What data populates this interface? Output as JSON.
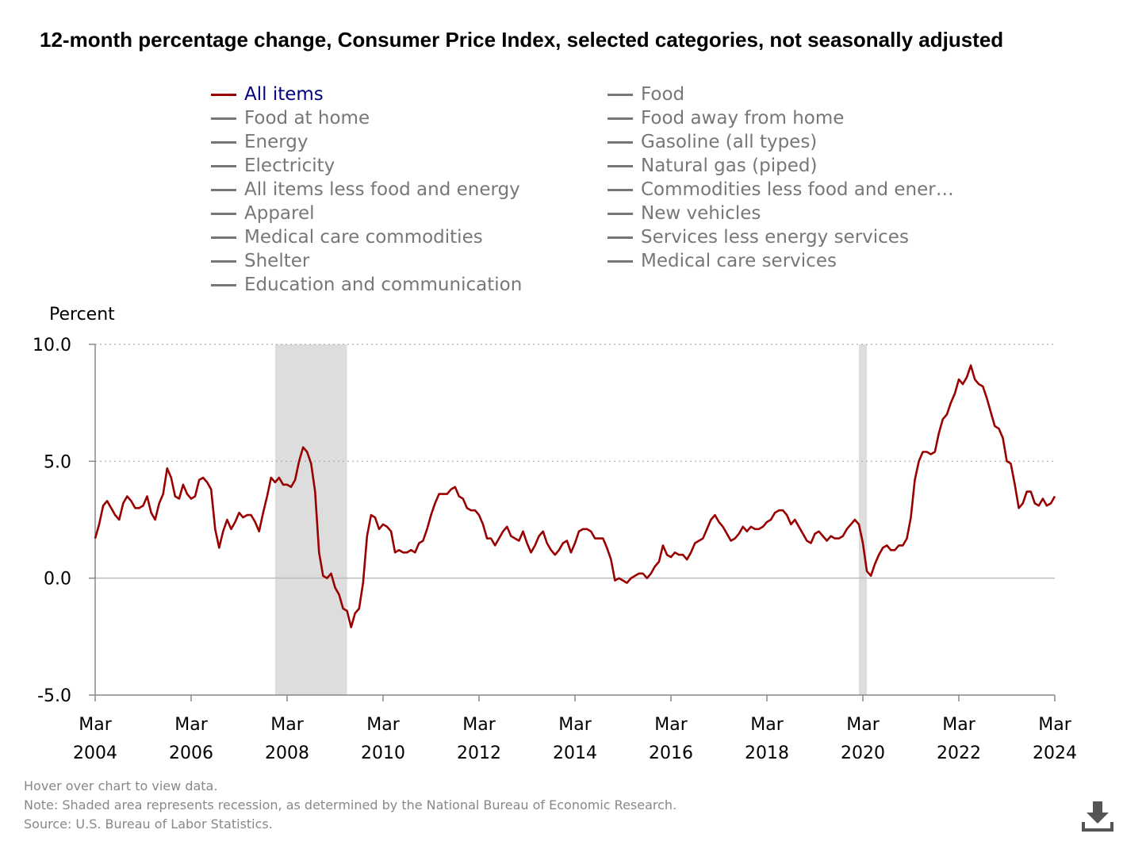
{
  "title": "12-month percentage change, Consumer Price Index, selected categories, not seasonally adjusted",
  "legend": {
    "col1": [
      "All items",
      "Food at home",
      "Energy",
      "Electricity",
      "All items less food and energy",
      "Apparel",
      "Medical care commodities",
      "Shelter",
      "Education and communication"
    ],
    "col2": [
      "Food",
      "Food away from home",
      "Gasoline (all types)",
      "Natural gas (piped)",
      "Commodities less food and ener…",
      "New vehicles",
      "Services less energy services",
      "Medical care services"
    ]
  },
  "colors": {
    "active": "#990000",
    "inactive": "#777777",
    "recession": "#dddddd",
    "active_label": "#000080"
  },
  "icons": {
    "download": "download-icon"
  },
  "footer": {
    "hover": "Hover over chart to view data.",
    "note": "Note: Shaded area represents recession, as determined by the National Bureau of Economic Research.",
    "source": "Source: U.S. Bureau of Labor Statistics."
  },
  "chart_data": {
    "type": "line",
    "title": "12-month percentage change, Consumer Price Index, selected categories, not seasonally adjusted",
    "ylabel": "Percent",
    "xlabel": "",
    "ylim": [
      -5,
      10
    ],
    "yticks": [
      "10.0",
      "5.0",
      "0.0",
      "-5.0"
    ],
    "ytick_values": [
      10,
      5,
      0,
      -5
    ],
    "xlim": [
      "2004-03",
      "2024-03"
    ],
    "xticks": [
      {
        "month": "Mar",
        "year": "2004",
        "date": "2004-03"
      },
      {
        "month": "Mar",
        "year": "2006",
        "date": "2006-03"
      },
      {
        "month": "Mar",
        "year": "2008",
        "date": "2008-03"
      },
      {
        "month": "Mar",
        "year": "2010",
        "date": "2010-03"
      },
      {
        "month": "Mar",
        "year": "2012",
        "date": "2012-03"
      },
      {
        "month": "Mar",
        "year": "2014",
        "date": "2014-03"
      },
      {
        "month": "Mar",
        "year": "2016",
        "date": "2016-03"
      },
      {
        "month": "Mar",
        "year": "2018",
        "date": "2018-03"
      },
      {
        "month": "Mar",
        "year": "2020",
        "date": "2020-03"
      },
      {
        "month": "Mar",
        "year": "2022",
        "date": "2022-03"
      },
      {
        "month": "Mar",
        "year": "2024",
        "date": "2024-03"
      }
    ],
    "recessions": [
      [
        "2007-12",
        "2009-06"
      ],
      [
        "2020-02",
        "2020-04"
      ]
    ],
    "grid": "dotted horizontal",
    "series": [
      {
        "name": "All items",
        "color": "#990000",
        "points": [
          [
            "2004-03",
            1.7
          ],
          [
            "2004-04",
            2.3
          ],
          [
            "2004-05",
            3.1
          ],
          [
            "2004-06",
            3.3
          ],
          [
            "2004-07",
            3.0
          ],
          [
            "2004-08",
            2.7
          ],
          [
            "2004-09",
            2.5
          ],
          [
            "2004-10",
            3.2
          ],
          [
            "2004-11",
            3.5
          ],
          [
            "2004-12",
            3.3
          ],
          [
            "2005-01",
            3.0
          ],
          [
            "2005-02",
            3.0
          ],
          [
            "2005-03",
            3.1
          ],
          [
            "2005-04",
            3.5
          ],
          [
            "2005-05",
            2.8
          ],
          [
            "2005-06",
            2.5
          ],
          [
            "2005-07",
            3.2
          ],
          [
            "2005-08",
            3.6
          ],
          [
            "2005-09",
            4.7
          ],
          [
            "2005-10",
            4.3
          ],
          [
            "2005-11",
            3.5
          ],
          [
            "2005-12",
            3.4
          ],
          [
            "2006-01",
            4.0
          ],
          [
            "2006-02",
            3.6
          ],
          [
            "2006-03",
            3.4
          ],
          [
            "2006-04",
            3.5
          ],
          [
            "2006-05",
            4.2
          ],
          [
            "2006-06",
            4.3
          ],
          [
            "2006-07",
            4.1
          ],
          [
            "2006-08",
            3.8
          ],
          [
            "2006-09",
            2.1
          ],
          [
            "2006-10",
            1.3
          ],
          [
            "2006-11",
            2.0
          ],
          [
            "2006-12",
            2.5
          ],
          [
            "2007-01",
            2.1
          ],
          [
            "2007-02",
            2.4
          ],
          [
            "2007-03",
            2.8
          ],
          [
            "2007-04",
            2.6
          ],
          [
            "2007-05",
            2.7
          ],
          [
            "2007-06",
            2.7
          ],
          [
            "2007-07",
            2.4
          ],
          [
            "2007-08",
            2.0
          ],
          [
            "2007-09",
            2.8
          ],
          [
            "2007-10",
            3.5
          ],
          [
            "2007-11",
            4.3
          ],
          [
            "2007-12",
            4.1
          ],
          [
            "2008-01",
            4.3
          ],
          [
            "2008-02",
            4.0
          ],
          [
            "2008-03",
            4.0
          ],
          [
            "2008-04",
            3.9
          ],
          [
            "2008-05",
            4.2
          ],
          [
            "2008-06",
            5.0
          ],
          [
            "2008-07",
            5.6
          ],
          [
            "2008-08",
            5.4
          ],
          [
            "2008-09",
            4.9
          ],
          [
            "2008-10",
            3.7
          ],
          [
            "2008-11",
            1.1
          ],
          [
            "2008-12",
            0.1
          ],
          [
            "2009-01",
            0.0
          ],
          [
            "2009-02",
            0.2
          ],
          [
            "2009-03",
            -0.4
          ],
          [
            "2009-04",
            -0.7
          ],
          [
            "2009-05",
            -1.3
          ],
          [
            "2009-06",
            -1.4
          ],
          [
            "2009-07",
            -2.1
          ],
          [
            "2009-08",
            -1.5
          ],
          [
            "2009-09",
            -1.3
          ],
          [
            "2009-10",
            -0.2
          ],
          [
            "2009-11",
            1.8
          ],
          [
            "2009-12",
            2.7
          ],
          [
            "2010-01",
            2.6
          ],
          [
            "2010-02",
            2.1
          ],
          [
            "2010-03",
            2.3
          ],
          [
            "2010-04",
            2.2
          ],
          [
            "2010-05",
            2.0
          ],
          [
            "2010-06",
            1.1
          ],
          [
            "2010-07",
            1.2
          ],
          [
            "2010-08",
            1.1
          ],
          [
            "2010-09",
            1.1
          ],
          [
            "2010-10",
            1.2
          ],
          [
            "2010-11",
            1.1
          ],
          [
            "2010-12",
            1.5
          ],
          [
            "2011-01",
            1.6
          ],
          [
            "2011-02",
            2.1
          ],
          [
            "2011-03",
            2.7
          ],
          [
            "2011-04",
            3.2
          ],
          [
            "2011-05",
            3.6
          ],
          [
            "2011-06",
            3.6
          ],
          [
            "2011-07",
            3.6
          ],
          [
            "2011-08",
            3.8
          ],
          [
            "2011-09",
            3.9
          ],
          [
            "2011-10",
            3.5
          ],
          [
            "2011-11",
            3.4
          ],
          [
            "2011-12",
            3.0
          ],
          [
            "2012-01",
            2.9
          ],
          [
            "2012-02",
            2.9
          ],
          [
            "2012-03",
            2.7
          ],
          [
            "2012-04",
            2.3
          ],
          [
            "2012-05",
            1.7
          ],
          [
            "2012-06",
            1.7
          ],
          [
            "2012-07",
            1.4
          ],
          [
            "2012-08",
            1.7
          ],
          [
            "2012-09",
            2.0
          ],
          [
            "2012-10",
            2.2
          ],
          [
            "2012-11",
            1.8
          ],
          [
            "2012-12",
            1.7
          ],
          [
            "2013-01",
            1.6
          ],
          [
            "2013-02",
            2.0
          ],
          [
            "2013-03",
            1.5
          ],
          [
            "2013-04",
            1.1
          ],
          [
            "2013-05",
            1.4
          ],
          [
            "2013-06",
            1.8
          ],
          [
            "2013-07",
            2.0
          ],
          [
            "2013-08",
            1.5
          ],
          [
            "2013-09",
            1.2
          ],
          [
            "2013-10",
            1.0
          ],
          [
            "2013-11",
            1.2
          ],
          [
            "2013-12",
            1.5
          ],
          [
            "2014-01",
            1.6
          ],
          [
            "2014-02",
            1.1
          ],
          [
            "2014-03",
            1.5
          ],
          [
            "2014-04",
            2.0
          ],
          [
            "2014-05",
            2.1
          ],
          [
            "2014-06",
            2.1
          ],
          [
            "2014-07",
            2.0
          ],
          [
            "2014-08",
            1.7
          ],
          [
            "2014-09",
            1.7
          ],
          [
            "2014-10",
            1.7
          ],
          [
            "2014-11",
            1.3
          ],
          [
            "2014-12",
            0.8
          ],
          [
            "2015-01",
            -0.1
          ],
          [
            "2015-02",
            0.0
          ],
          [
            "2015-03",
            -0.1
          ],
          [
            "2015-04",
            -0.2
          ],
          [
            "2015-05",
            0.0
          ],
          [
            "2015-06",
            0.1
          ],
          [
            "2015-07",
            0.2
          ],
          [
            "2015-08",
            0.2
          ],
          [
            "2015-09",
            0.0
          ],
          [
            "2015-10",
            0.2
          ],
          [
            "2015-11",
            0.5
          ],
          [
            "2015-12",
            0.7
          ],
          [
            "2016-01",
            1.4
          ],
          [
            "2016-02",
            1.0
          ],
          [
            "2016-03",
            0.9
          ],
          [
            "2016-04",
            1.1
          ],
          [
            "2016-05",
            1.0
          ],
          [
            "2016-06",
            1.0
          ],
          [
            "2016-07",
            0.8
          ],
          [
            "2016-08",
            1.1
          ],
          [
            "2016-09",
            1.5
          ],
          [
            "2016-10",
            1.6
          ],
          [
            "2016-11",
            1.7
          ],
          [
            "2016-12",
            2.1
          ],
          [
            "2017-01",
            2.5
          ],
          [
            "2017-02",
            2.7
          ],
          [
            "2017-03",
            2.4
          ],
          [
            "2017-04",
            2.2
          ],
          [
            "2017-05",
            1.9
          ],
          [
            "2017-06",
            1.6
          ],
          [
            "2017-07",
            1.7
          ],
          [
            "2017-08",
            1.9
          ],
          [
            "2017-09",
            2.2
          ],
          [
            "2017-10",
            2.0
          ],
          [
            "2017-11",
            2.2
          ],
          [
            "2017-12",
            2.1
          ],
          [
            "2018-01",
            2.1
          ],
          [
            "2018-02",
            2.2
          ],
          [
            "2018-03",
            2.4
          ],
          [
            "2018-04",
            2.5
          ],
          [
            "2018-05",
            2.8
          ],
          [
            "2018-06",
            2.9
          ],
          [
            "2018-07",
            2.9
          ],
          [
            "2018-08",
            2.7
          ],
          [
            "2018-09",
            2.3
          ],
          [
            "2018-10",
            2.5
          ],
          [
            "2018-11",
            2.2
          ],
          [
            "2018-12",
            1.9
          ],
          [
            "2019-01",
            1.6
          ],
          [
            "2019-02",
            1.5
          ],
          [
            "2019-03",
            1.9
          ],
          [
            "2019-04",
            2.0
          ],
          [
            "2019-05",
            1.8
          ],
          [
            "2019-06",
            1.6
          ],
          [
            "2019-07",
            1.8
          ],
          [
            "2019-08",
            1.7
          ],
          [
            "2019-09",
            1.7
          ],
          [
            "2019-10",
            1.8
          ],
          [
            "2019-11",
            2.1
          ],
          [
            "2019-12",
            2.3
          ],
          [
            "2020-01",
            2.5
          ],
          [
            "2020-02",
            2.3
          ],
          [
            "2020-03",
            1.5
          ],
          [
            "2020-04",
            0.3
          ],
          [
            "2020-05",
            0.1
          ],
          [
            "2020-06",
            0.6
          ],
          [
            "2020-07",
            1.0
          ],
          [
            "2020-08",
            1.3
          ],
          [
            "2020-09",
            1.4
          ],
          [
            "2020-10",
            1.2
          ],
          [
            "2020-11",
            1.2
          ],
          [
            "2020-12",
            1.4
          ],
          [
            "2021-01",
            1.4
          ],
          [
            "2021-02",
            1.7
          ],
          [
            "2021-03",
            2.6
          ],
          [
            "2021-04",
            4.2
          ],
          [
            "2021-05",
            5.0
          ],
          [
            "2021-06",
            5.4
          ],
          [
            "2021-07",
            5.4
          ],
          [
            "2021-08",
            5.3
          ],
          [
            "2021-09",
            5.4
          ],
          [
            "2021-10",
            6.2
          ],
          [
            "2021-11",
            6.8
          ],
          [
            "2021-12",
            7.0
          ],
          [
            "2022-01",
            7.5
          ],
          [
            "2022-02",
            7.9
          ],
          [
            "2022-03",
            8.5
          ],
          [
            "2022-04",
            8.3
          ],
          [
            "2022-05",
            8.6
          ],
          [
            "2022-06",
            9.1
          ],
          [
            "2022-07",
            8.5
          ],
          [
            "2022-08",
            8.3
          ],
          [
            "2022-09",
            8.2
          ],
          [
            "2022-10",
            7.7
          ],
          [
            "2022-11",
            7.1
          ],
          [
            "2022-12",
            6.5
          ],
          [
            "2023-01",
            6.4
          ],
          [
            "2023-02",
            6.0
          ],
          [
            "2023-03",
            5.0
          ],
          [
            "2023-04",
            4.9
          ],
          [
            "2023-05",
            4.0
          ],
          [
            "2023-06",
            3.0
          ],
          [
            "2023-07",
            3.2
          ],
          [
            "2023-08",
            3.7
          ],
          [
            "2023-09",
            3.7
          ],
          [
            "2023-10",
            3.2
          ],
          [
            "2023-11",
            3.1
          ],
          [
            "2023-12",
            3.4
          ],
          [
            "2024-01",
            3.1
          ],
          [
            "2024-02",
            3.2
          ],
          [
            "2024-03",
            3.5
          ]
        ]
      }
    ]
  }
}
